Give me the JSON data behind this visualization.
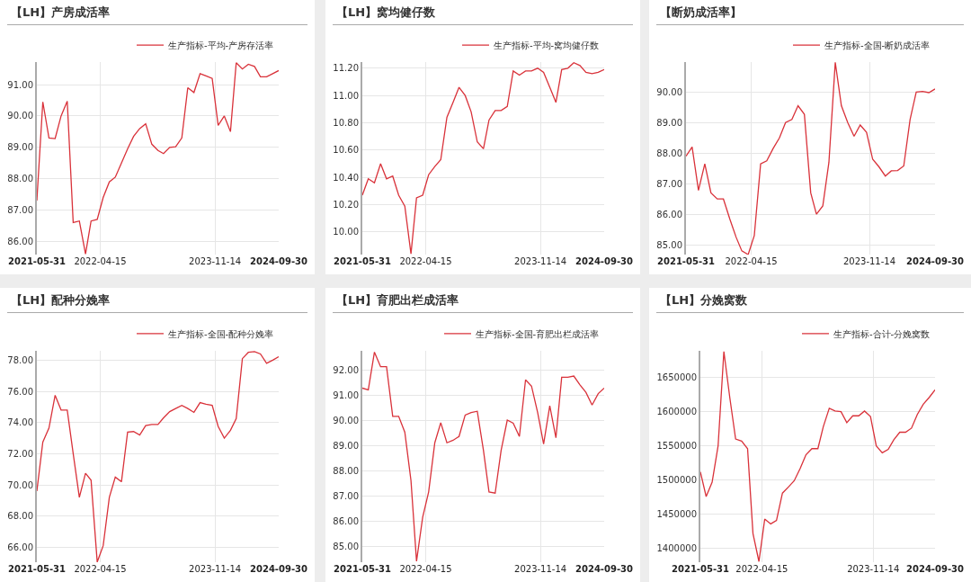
{
  "chart_data": [
    {
      "type": "line",
      "title": "【LH】产房成活率",
      "x": [
        "2021-05-31",
        "2021-06-30",
        "2021-07-31",
        "2021-08-31",
        "2021-09-30",
        "2021-10-31",
        "2021-11-30",
        "2021-12-31",
        "2022-01-31",
        "2022-02-28",
        "2022-03-31",
        "2022-04-30",
        "2022-05-31",
        "2022-06-30",
        "2022-07-31",
        "2022-08-31",
        "2022-09-30",
        "2022-10-31",
        "2022-11-30",
        "2022-12-31",
        "2023-01-31",
        "2023-02-28",
        "2023-03-31",
        "2023-04-30",
        "2023-05-31",
        "2023-06-30",
        "2023-07-31",
        "2023-08-31",
        "2023-09-30",
        "2023-10-31",
        "2023-11-30",
        "2023-12-31",
        "2024-01-31",
        "2024-02-29",
        "2024-03-31",
        "2024-04-30",
        "2024-05-31",
        "2024-06-30",
        "2024-07-31",
        "2024-08-31",
        "2024-09-30"
      ],
      "series": [
        {
          "name": "生产指标-平均-产房存活率",
          "color": "#d9323a",
          "values": [
            87.3,
            90.45,
            89.3,
            89.28,
            90.0,
            90.47,
            86.6,
            86.65,
            85.6,
            86.65,
            86.7,
            87.4,
            87.9,
            88.05,
            88.5,
            88.95,
            89.35,
            89.6,
            89.75,
            89.1,
            88.9,
            88.8,
            89.0,
            89.02,
            89.3,
            90.9,
            90.75,
            91.35,
            91.28,
            91.2,
            89.7,
            90.0,
            89.5,
            91.7,
            91.5,
            91.65,
            91.58,
            91.25,
            91.25,
            91.35,
            91.45
          ]
        }
      ],
      "xlim": [
        "2021-05-31",
        "2024-09-30"
      ],
      "xticks": [
        "2021-05-31",
        "2022-04-15",
        "2023-11-14",
        "2024-09-30"
      ],
      "ylim": [
        85.58,
        91.72
      ],
      "yticks": [
        {
          "value": 86,
          "label": "86.00"
        },
        {
          "value": 87,
          "label": "87.00"
        },
        {
          "value": 88,
          "label": "88.00"
        },
        {
          "value": 89,
          "label": "89.00"
        },
        {
          "value": 90,
          "label": "90.00"
        },
        {
          "value": 91,
          "label": "91.00"
        }
      ],
      "grid": true,
      "legend": "top right"
    },
    {
      "type": "line",
      "title": "【LH】窝均健仔数",
      "x": [
        "2021-05-31",
        "2021-06-30",
        "2021-07-31",
        "2021-08-31",
        "2021-09-30",
        "2021-10-31",
        "2021-11-30",
        "2021-12-31",
        "2022-01-31",
        "2022-02-28",
        "2022-03-31",
        "2022-04-30",
        "2022-05-31",
        "2022-06-30",
        "2022-07-31",
        "2022-08-31",
        "2022-09-30",
        "2022-10-31",
        "2022-11-30",
        "2022-12-31",
        "2023-01-31",
        "2023-02-28",
        "2023-03-31",
        "2023-04-30",
        "2023-05-31",
        "2023-06-30",
        "2023-07-31",
        "2023-08-31",
        "2023-09-30",
        "2023-10-31",
        "2023-11-30",
        "2023-12-31",
        "2024-01-31",
        "2024-02-29",
        "2024-03-31",
        "2024-04-30",
        "2024-05-31",
        "2024-06-30",
        "2024-07-31",
        "2024-08-31",
        "2024-09-30"
      ],
      "series": [
        {
          "name": "生产指标-平均-窝均健仔数",
          "color": "#d9323a",
          "values": [
            10.27,
            10.39,
            10.36,
            10.5,
            10.39,
            10.41,
            10.27,
            10.19,
            9.84,
            10.25,
            10.27,
            10.42,
            10.48,
            10.53,
            10.84,
            10.95,
            11.06,
            11.0,
            10.88,
            10.66,
            10.61,
            10.82,
            10.89,
            10.89,
            10.92,
            11.18,
            11.15,
            11.18,
            11.18,
            11.2,
            11.17,
            11.06,
            10.95,
            11.19,
            11.2,
            11.24,
            11.22,
            11.17,
            11.16,
            11.17,
            11.19
          ]
        }
      ],
      "xlim": [
        "2021-05-31",
        "2024-09-30"
      ],
      "xticks": [
        "2021-05-31",
        "2022-04-15",
        "2023-11-14",
        "2024-09-30"
      ],
      "ylim": [
        9.835,
        11.245
      ],
      "yticks": [
        {
          "value": 10,
          "label": "10.00"
        },
        {
          "value": 10.2,
          "label": "10.20"
        },
        {
          "value": 10.4,
          "label": "10.40"
        },
        {
          "value": 10.6,
          "label": "10.60"
        },
        {
          "value": 10.8,
          "label": "10.80"
        },
        {
          "value": 11,
          "label": "11.00"
        },
        {
          "value": 11.2,
          "label": "11.20"
        }
      ],
      "grid": true,
      "legend": "top right"
    },
    {
      "type": "line",
      "title": "【断奶成活率】",
      "x": [
        "2021-05-31",
        "2021-06-30",
        "2021-07-31",
        "2021-08-31",
        "2021-09-30",
        "2021-10-31",
        "2021-11-30",
        "2021-12-31",
        "2022-01-31",
        "2022-02-28",
        "2022-03-31",
        "2022-04-30",
        "2022-05-31",
        "2022-06-30",
        "2022-07-31",
        "2022-08-31",
        "2022-09-30",
        "2022-10-31",
        "2022-11-30",
        "2022-12-31",
        "2023-01-31",
        "2023-02-28",
        "2023-03-31",
        "2023-04-30",
        "2023-05-31",
        "2023-06-30",
        "2023-07-31",
        "2023-08-31",
        "2023-09-30",
        "2023-10-31",
        "2023-11-30",
        "2023-12-31",
        "2024-01-31",
        "2024-02-29",
        "2024-03-31",
        "2024-04-30",
        "2024-05-31",
        "2024-06-30",
        "2024-07-31",
        "2024-08-31",
        "2024-09-30"
      ],
      "series": [
        {
          "name": "生产指标-全国-断奶成活率",
          "color": "#d9323a",
          "values": [
            87.9,
            88.2,
            86.78,
            87.65,
            86.7,
            86.5,
            86.5,
            85.85,
            85.25,
            84.8,
            84.68,
            85.3,
            87.65,
            87.75,
            88.15,
            88.5,
            89.0,
            89.1,
            89.55,
            89.27,
            86.7,
            86.0,
            86.27,
            87.7,
            90.97,
            89.55,
            89.0,
            88.55,
            88.92,
            88.68,
            87.8,
            87.55,
            87.25,
            87.42,
            87.43,
            87.58,
            89.1,
            90.0,
            90.02,
            89.98,
            90.1
          ]
        }
      ],
      "xlim": [
        "2021-05-31",
        "2024-09-30"
      ],
      "xticks": [
        "2021-05-31",
        "2022-04-15",
        "2023-11-14",
        "2024-09-30"
      ],
      "ylim": [
        84.68,
        90.98
      ],
      "yticks": [
        {
          "value": 85,
          "label": "85.00"
        },
        {
          "value": 86,
          "label": "86.00"
        },
        {
          "value": 87,
          "label": "87.00"
        },
        {
          "value": 88,
          "label": "88.00"
        },
        {
          "value": 89,
          "label": "89.00"
        },
        {
          "value": 90,
          "label": "90.00"
        }
      ],
      "grid": true,
      "legend": "top right"
    },
    {
      "type": "line",
      "title": "【LH】配种分娩率",
      "x": [
        "2021-05-31",
        "2021-06-30",
        "2021-07-31",
        "2021-08-31",
        "2021-09-30",
        "2021-10-31",
        "2021-11-30",
        "2021-12-31",
        "2022-01-31",
        "2022-02-28",
        "2022-03-31",
        "2022-04-30",
        "2022-05-31",
        "2022-06-30",
        "2022-07-31",
        "2022-08-31",
        "2022-09-30",
        "2022-10-31",
        "2022-11-30",
        "2022-12-31",
        "2023-01-31",
        "2023-02-28",
        "2023-03-31",
        "2023-04-30",
        "2023-05-31",
        "2023-06-30",
        "2023-07-31",
        "2023-08-31",
        "2023-09-30",
        "2023-10-31",
        "2023-11-30",
        "2023-12-31",
        "2024-01-31",
        "2024-02-29",
        "2024-03-31",
        "2024-04-30",
        "2024-05-31",
        "2024-06-30",
        "2024-07-31",
        "2024-08-31",
        "2024-09-30"
      ],
      "series": [
        {
          "name": "生产指标-全国-配种分娩率",
          "color": "#d9323a",
          "values": [
            69.6,
            72.75,
            73.65,
            75.75,
            74.8,
            74.8,
            72.0,
            69.2,
            70.75,
            70.3,
            65.05,
            66.1,
            69.2,
            70.5,
            70.2,
            73.38,
            73.42,
            73.2,
            73.8,
            73.88,
            73.88,
            74.3,
            74.7,
            74.9,
            75.1,
            74.9,
            74.65,
            75.28,
            75.18,
            75.1,
            73.75,
            73.0,
            73.5,
            74.25,
            78.1,
            78.5,
            78.55,
            78.4,
            77.8,
            78.0,
            78.22
          ]
        }
      ],
      "xlim": [
        "2021-05-31",
        "2024-09-30"
      ],
      "xticks": [
        "2021-05-31",
        "2022-04-15",
        "2023-11-14",
        "2024-09-30"
      ],
      "ylim": [
        65.04,
        78.6
      ],
      "yticks": [
        {
          "value": 66,
          "label": "66.00"
        },
        {
          "value": 68,
          "label": "68.00"
        },
        {
          "value": 70,
          "label": "70.00"
        },
        {
          "value": 72,
          "label": "72.00"
        },
        {
          "value": 74,
          "label": "74.00"
        },
        {
          "value": 76,
          "label": "76.00"
        },
        {
          "value": 78,
          "label": "78.00"
        }
      ],
      "grid": true,
      "legend": "top right"
    },
    {
      "type": "line",
      "title": "【LH】育肥出栏成活率",
      "x": [
        "2021-05-31",
        "2021-06-30",
        "2021-07-31",
        "2021-08-31",
        "2021-09-30",
        "2021-10-31",
        "2021-11-30",
        "2021-12-31",
        "2022-01-31",
        "2022-02-28",
        "2022-03-31",
        "2022-04-30",
        "2022-05-31",
        "2022-06-30",
        "2022-07-31",
        "2022-08-31",
        "2022-09-30",
        "2022-10-31",
        "2022-11-30",
        "2022-12-31",
        "2023-01-31",
        "2023-02-28",
        "2023-03-31",
        "2023-04-30",
        "2023-05-31",
        "2023-06-30",
        "2023-07-31",
        "2023-08-31",
        "2023-09-30",
        "2023-10-31",
        "2023-11-30",
        "2023-12-31",
        "2024-01-31",
        "2024-02-29",
        "2024-03-31",
        "2024-04-30",
        "2024-05-31",
        "2024-06-30",
        "2024-07-31",
        "2024-08-31",
        "2024-09-30"
      ],
      "series": [
        {
          "name": "生产指标-全国-育肥出栏成活率",
          "color": "#d9323a",
          "values": [
            91.27,
            91.2,
            92.7,
            92.12,
            92.12,
            90.15,
            90.15,
            89.52,
            87.6,
            84.4,
            86.15,
            87.15,
            89.1,
            89.9,
            89.1,
            89.2,
            89.35,
            90.2,
            90.3,
            90.35,
            88.8,
            87.15,
            87.1,
            88.8,
            90.0,
            89.88,
            89.35,
            91.6,
            91.35,
            90.3,
            89.05,
            90.57,
            89.3,
            91.7,
            91.7,
            91.75,
            91.4,
            91.1,
            90.6,
            91.05,
            91.27
          ]
        }
      ],
      "xlim": [
        "2021-05-31",
        "2024-09-30"
      ],
      "xticks": [
        "2021-05-31",
        "2022-04-15",
        "2023-11-14",
        "2024-09-30"
      ],
      "ylim": [
        84.36,
        92.75
      ],
      "yticks": [
        {
          "value": 85,
          "label": "85.00"
        },
        {
          "value": 86,
          "label": "86.00"
        },
        {
          "value": 87,
          "label": "87.00"
        },
        {
          "value": 88,
          "label": "88.00"
        },
        {
          "value": 89,
          "label": "89.00"
        },
        {
          "value": 90,
          "label": "90.00"
        },
        {
          "value": 91,
          "label": "91.00"
        },
        {
          "value": 92,
          "label": "92.00"
        }
      ],
      "grid": true,
      "legend": "top right"
    },
    {
      "type": "line",
      "title": "【LH】分娩窝数",
      "x": [
        "2021-05-31",
        "2021-06-30",
        "2021-07-31",
        "2021-08-31",
        "2021-09-30",
        "2021-10-31",
        "2021-11-30",
        "2021-12-31",
        "2022-01-31",
        "2022-02-28",
        "2022-03-31",
        "2022-04-30",
        "2022-05-31",
        "2022-06-30",
        "2022-07-31",
        "2022-08-31",
        "2022-09-30",
        "2022-10-31",
        "2022-11-30",
        "2022-12-31",
        "2023-01-31",
        "2023-02-28",
        "2023-03-31",
        "2023-04-30",
        "2023-05-31",
        "2023-06-30",
        "2023-07-31",
        "2023-08-31",
        "2023-09-30",
        "2023-10-31",
        "2023-11-30",
        "2023-12-31",
        "2024-01-31",
        "2024-02-29",
        "2024-03-31",
        "2024-04-30",
        "2024-05-31",
        "2024-06-30",
        "2024-07-31",
        "2024-08-31",
        "2024-09-30"
      ],
      "series": [
        {
          "name": "生产指标-合计-分娩窝数",
          "color": "#d9323a",
          "values": [
            1512000,
            1476000,
            1497000,
            1550000,
            1688000,
            1620000,
            1560000,
            1557000,
            1546000,
            1422000,
            1381000,
            1443000,
            1436000,
            1441000,
            1481000,
            1490000,
            1499000,
            1517000,
            1537000,
            1546000,
            1546000,
            1578000,
            1605000,
            1601000,
            1600000,
            1584000,
            1594000,
            1594000,
            1601000,
            1593000,
            1550000,
            1540000,
            1545000,
            1559000,
            1570000,
            1570000,
            1576000,
            1596000,
            1611000,
            1621000,
            1632000
          ]
        }
      ],
      "xlim": [
        "2021-05-31",
        "2024-09-30"
      ],
      "xticks": [
        "2021-05-31",
        "2022-04-15",
        "2023-11-14",
        "2024-09-30"
      ],
      "ylim": [
        1380000,
        1689000
      ],
      "yticks": [
        1400000,
        1450000,
        1500000,
        1550000,
        1600000,
        1650000
      ],
      "grid": true,
      "legend": "top right"
    }
  ]
}
